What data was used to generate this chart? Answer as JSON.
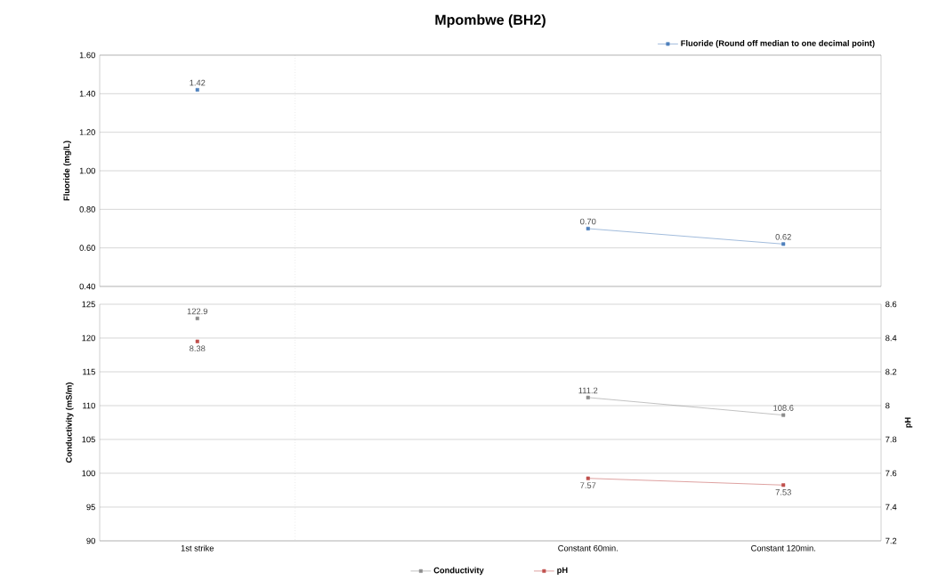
{
  "chart_data": [
    {
      "type": "line",
      "title": "Mpombwe (BH2)",
      "ylabel": "Fluoride (mg/L)",
      "categories": [
        null,
        null,
        null,
        null
      ],
      "series": [
        {
          "name": "Fluoride (Round off median to one decimal point)",
          "color": "#4f81bd",
          "values": [
            1.42,
            null,
            0.7,
            0.62
          ],
          "value_labels": [
            "1.42",
            null,
            "0.70",
            "0.62"
          ]
        }
      ],
      "ylim": [
        0.4,
        1.6
      ],
      "yticks": [
        {
          "value": 0.4,
          "label": "0.40"
        },
        {
          "value": 0.6,
          "label": "0.60"
        },
        {
          "value": 0.8,
          "label": "0.80"
        },
        {
          "value": 1.0,
          "label": "1.00"
        },
        {
          "value": 1.2,
          "label": "1.20"
        },
        {
          "value": 1.4,
          "label": "1.40"
        },
        {
          "value": 1.6,
          "label": "1.60"
        }
      ],
      "grid": "y",
      "legend": "top right",
      "marker": "square"
    },
    {
      "type": "line",
      "ylabel": "Conductivity (mS/m)",
      "y2label": "pH",
      "categories": [
        "1st strike",
        null,
        "Constant 60min.",
        "Constant 120min."
      ],
      "series": [
        {
          "name": "Conductivity",
          "color": "#8c8c8c",
          "values": [
            122.9,
            null,
            111.2,
            108.6
          ],
          "value_labels": [
            "122.9",
            null,
            "111.2",
            "108.6"
          ]
        },
        {
          "name": "pH",
          "color": "#c0504d",
          "axis": "y2",
          "values": [
            8.38,
            null,
            7.57,
            7.53
          ],
          "value_labels": [
            "8.38",
            null,
            "7.57",
            "7.53"
          ]
        }
      ],
      "ylim": [
        90,
        125
      ],
      "yticks": [
        90,
        95,
        100,
        105,
        110,
        115,
        120,
        125
      ],
      "y2lim": [
        7.2,
        8.6
      ],
      "y2ticks": [
        7.2,
        7.4,
        7.6,
        7.8,
        8,
        8.2,
        8.4,
        8.6
      ],
      "grid": "y",
      "legend": "bottom",
      "marker": "square"
    }
  ]
}
